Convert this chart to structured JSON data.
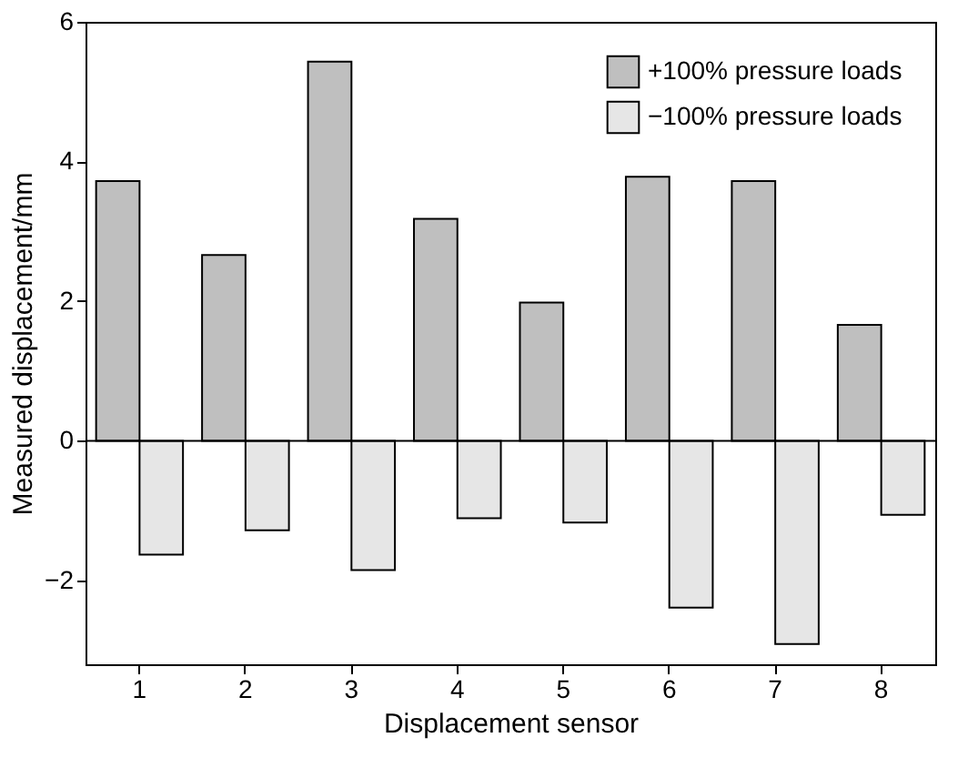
{
  "chart_data": {
    "type": "bar",
    "xlabel": "Displacement sensor",
    "ylabel": "Measured displacement/mm",
    "categories": [
      "1",
      "2",
      "3",
      "4",
      "5",
      "6",
      "7",
      "8"
    ],
    "series": [
      {
        "name": "+100% pressure loads",
        "color": "#bfbfbf",
        "values": [
          3.72,
          2.66,
          5.43,
          3.18,
          1.98,
          3.78,
          3.72,
          1.66
        ]
      },
      {
        "name": "−100% pressure loads",
        "color": "#e6e6e6",
        "values": [
          -1.63,
          -1.28,
          -1.85,
          -1.11,
          -1.17,
          -2.39,
          -2.91,
          -1.06
        ]
      }
    ],
    "ylim": [
      -3.2,
      6
    ],
    "yticks": [
      -2,
      0,
      2,
      4,
      6
    ],
    "grid": false,
    "ref_lines": [
      {
        "axis": "y",
        "value": 0,
        "color": "#000000"
      }
    ],
    "legend": "top right"
  }
}
